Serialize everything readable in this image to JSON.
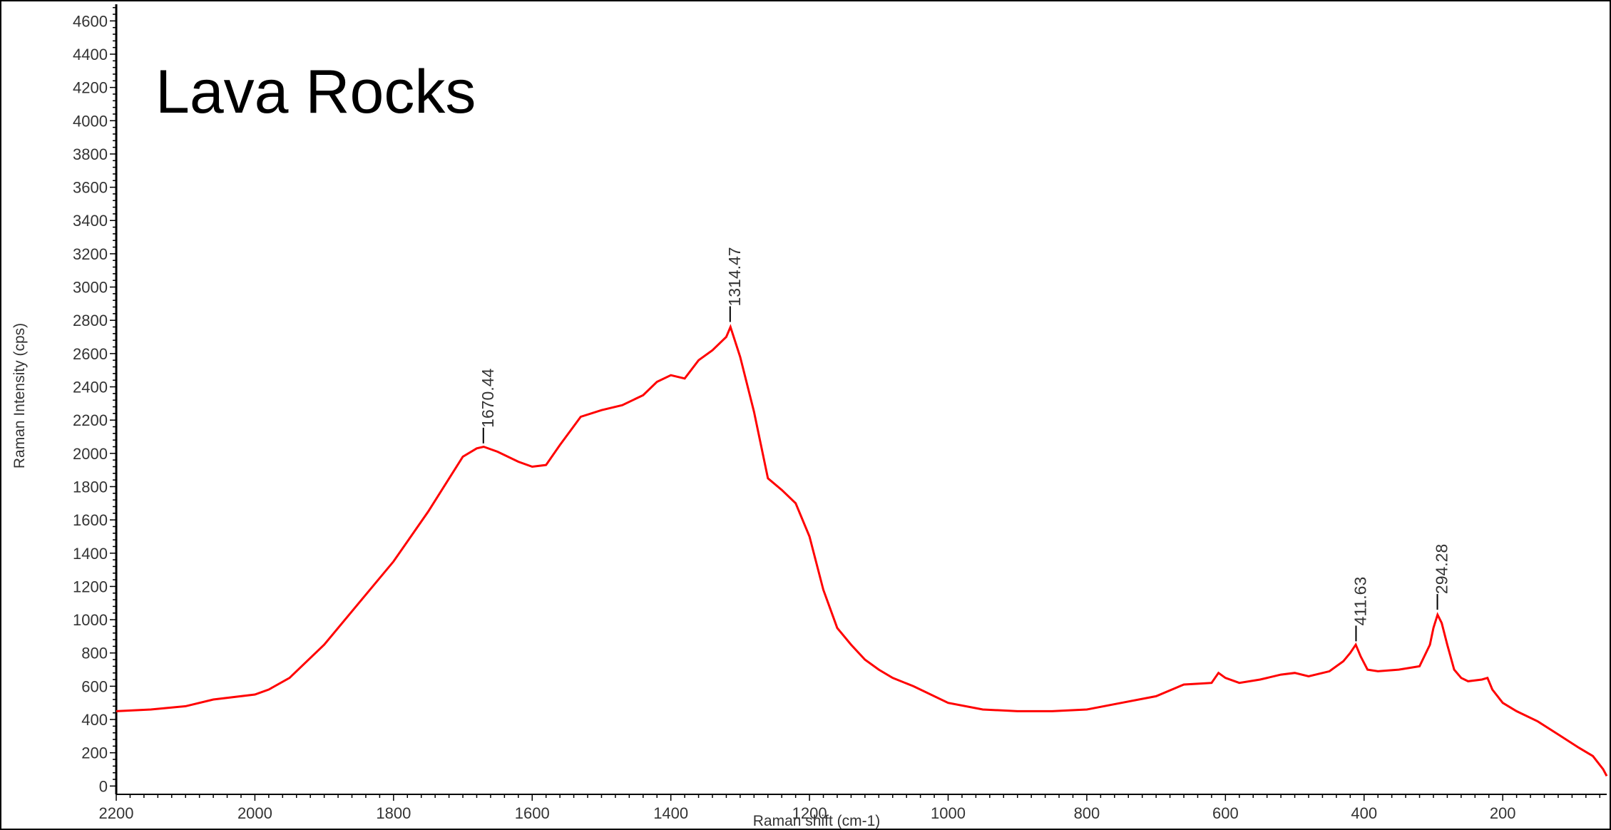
{
  "chart_data": {
    "type": "line",
    "title": "Lava Rocks",
    "xlabel": "Raman shift (cm-1)",
    "ylabel": "Raman Intensity (cps)",
    "xlim": [
      2200,
      50
    ],
    "x_reversed": true,
    "ylim": [
      -50,
      4700
    ],
    "x_ticks": [
      2200,
      2000,
      1800,
      1600,
      1400,
      1200,
      1000,
      800,
      600,
      400,
      200
    ],
    "y_ticks": [
      0,
      200,
      400,
      600,
      800,
      1000,
      1200,
      1400,
      1600,
      1800,
      2000,
      2200,
      2400,
      2600,
      2800,
      3000,
      3200,
      3400,
      3600,
      3800,
      4000,
      4200,
      4400,
      4600
    ],
    "grid": false,
    "legend": "none",
    "series": [
      {
        "color": "#ff0000",
        "x": [
          2200,
          2150,
          2100,
          2060,
          2000,
          1980,
          1950,
          1900,
          1850,
          1800,
          1750,
          1700,
          1680,
          1670,
          1650,
          1620,
          1600,
          1580,
          1560,
          1530,
          1500,
          1470,
          1440,
          1420,
          1400,
          1380,
          1360,
          1340,
          1320,
          1314,
          1300,
          1280,
          1260,
          1240,
          1220,
          1200,
          1180,
          1160,
          1140,
          1120,
          1100,
          1080,
          1050,
          1000,
          950,
          900,
          850,
          800,
          750,
          700,
          660,
          640,
          620,
          610,
          600,
          580,
          550,
          520,
          500,
          480,
          450,
          430,
          420,
          412,
          405,
          395,
          380,
          350,
          320,
          305,
          300,
          294,
          288,
          280,
          270,
          260,
          250,
          230,
          222,
          215,
          200,
          180,
          150,
          120,
          90,
          70,
          55,
          50
        ],
        "y": [
          450,
          460,
          480,
          520,
          550,
          580,
          650,
          850,
          1100,
          1350,
          1650,
          1980,
          2030,
          2040,
          2010,
          1950,
          1920,
          1930,
          2050,
          2220,
          2260,
          2290,
          2350,
          2430,
          2470,
          2450,
          2560,
          2620,
          2700,
          2760,
          2580,
          2250,
          1850,
          1780,
          1700,
          1500,
          1180,
          950,
          850,
          760,
          700,
          650,
          600,
          500,
          460,
          450,
          450,
          460,
          500,
          540,
          610,
          615,
          620,
          680,
          650,
          620,
          640,
          670,
          680,
          660,
          690,
          750,
          800,
          850,
          780,
          700,
          690,
          700,
          720,
          850,
          950,
          1030,
          980,
          850,
          700,
          650,
          630,
          640,
          650,
          580,
          500,
          450,
          390,
          310,
          230,
          180,
          100,
          60
        ]
      }
    ],
    "annotations": [
      {
        "label": "1670.44",
        "x": 1670.44,
        "y": 2060
      },
      {
        "label": "1314.47",
        "x": 1314.47,
        "y": 2790
      },
      {
        "label": "411.63",
        "x": 411.63,
        "y": 870
      },
      {
        "label": "294.28",
        "x": 294.28,
        "y": 1060
      }
    ]
  }
}
